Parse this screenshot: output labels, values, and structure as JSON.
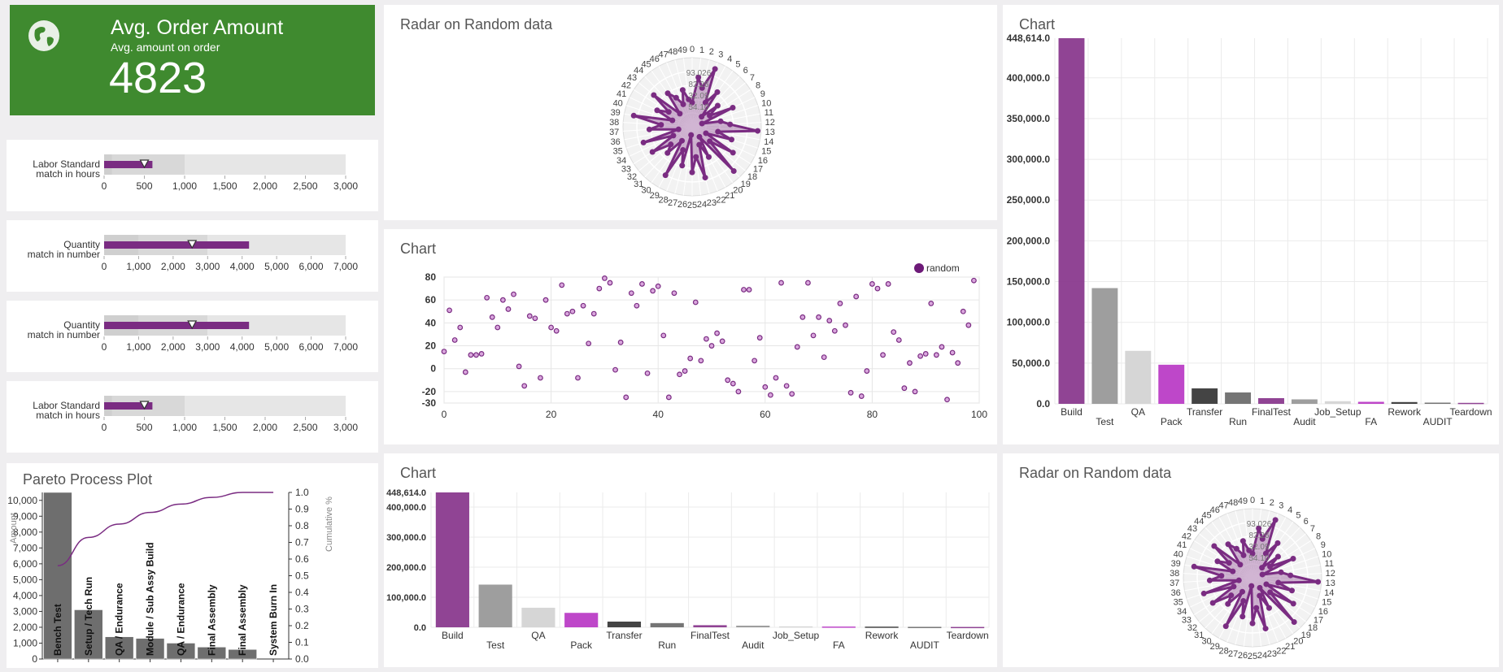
{
  "kpi": {
    "title": "Avg. Order Amount",
    "subtitle": "Avg. amount on order",
    "value": "4823",
    "icon": "globe-icon",
    "background": "#3f8a2f"
  },
  "bullets": [
    {
      "label1": "Labor Standard",
      "label2": "match in hours",
      "value": 600,
      "marker": 500,
      "bands": [
        [
          0,
          100,
          "#cfcfcf"
        ],
        [
          100,
          1000,
          "#d8d8d8"
        ],
        [
          1000,
          3000,
          "#e6e6e6"
        ]
      ],
      "max": 3000,
      "ticks": [
        0,
        500,
        1000,
        1500,
        2000,
        2500,
        3000
      ],
      "tick_labels": [
        "0",
        "500",
        "1,000",
        "1,500",
        "2,000",
        "2,500",
        "3,000"
      ]
    },
    {
      "label1": "Quantity",
      "label2": "match in number",
      "value": 4200,
      "marker": 2550,
      "bands": [
        [
          0,
          1000,
          "#cfcfcf"
        ],
        [
          1000,
          3000,
          "#d8d8d8"
        ],
        [
          3000,
          7000,
          "#e6e6e6"
        ]
      ],
      "max": 7000,
      "ticks": [
        0,
        1000,
        2000,
        3000,
        4000,
        5000,
        6000,
        7000
      ],
      "tick_labels": [
        "0",
        "1,000",
        "2,000",
        "3,000",
        "4,000",
        "5,000",
        "6,000",
        "7,000"
      ]
    },
    {
      "label1": "Quantity",
      "label2": "match in number",
      "value": 4200,
      "marker": 2550,
      "bands": [
        [
          0,
          1000,
          "#cfcfcf"
        ],
        [
          1000,
          3000,
          "#d8d8d8"
        ],
        [
          3000,
          7000,
          "#e6e6e6"
        ]
      ],
      "max": 7000,
      "ticks": [
        0,
        1000,
        2000,
        3000,
        4000,
        5000,
        6000,
        7000
      ],
      "tick_labels": [
        "0",
        "1,000",
        "2,000",
        "3,000",
        "4,000",
        "5,000",
        "6,000",
        "7,000"
      ]
    },
    {
      "label1": "Labor Standard",
      "label2": "match in hours",
      "value": 600,
      "marker": 500,
      "bands": [
        [
          0,
          100,
          "#cfcfcf"
        ],
        [
          100,
          1000,
          "#d8d8d8"
        ],
        [
          1000,
          3000,
          "#e6e6e6"
        ]
      ],
      "max": 3000,
      "ticks": [
        0,
        500,
        1000,
        1500,
        2000,
        2500,
        3000
      ],
      "tick_labels": [
        "0",
        "500",
        "1,000",
        "1,500",
        "2,000",
        "2,500",
        "3,000"
      ]
    }
  ],
  "titles": {
    "radar_top": "Radar on Random data",
    "scatter": "Chart",
    "bar_bottom": "Chart",
    "bar_right": "Chart",
    "radar_bottom": "Radar on Random data",
    "pareto": "Pareto Process Plot"
  },
  "colors": {
    "purple": "#7a2c82",
    "bright_purple": "#b83cc4",
    "gray": "#999999"
  },
  "chart_data": [
    {
      "id": "radar",
      "type": "radar",
      "axes": [
        "0",
        "1",
        "2",
        "3",
        "4",
        "5",
        "6",
        "7",
        "8",
        "9",
        "10",
        "11",
        "12",
        "13",
        "14",
        "15",
        "16",
        "17",
        "18",
        "19",
        "20",
        "21",
        "22",
        "23",
        "24",
        "25",
        "26",
        "27",
        "28",
        "29",
        "30",
        "31",
        "32",
        "33",
        "34",
        "35",
        "36",
        "37",
        "38",
        "39",
        "40",
        "41",
        "42",
        "43",
        "44",
        "45",
        "46",
        "47",
        "48",
        "49"
      ],
      "values": [
        35,
        72,
        58,
        90,
        40,
        62,
        20,
        48,
        30,
        65,
        15,
        42,
        55,
        95,
        38,
        60,
        22,
        70,
        33,
        88,
        18,
        50,
        28,
        76,
        44,
        66,
        12,
        58,
        36,
        80,
        25,
        52,
        40,
        68,
        30,
        74,
        20,
        62,
        45,
        86,
        30,
        56,
        40,
        72,
        26,
        60,
        48,
        35,
        55,
        40
      ],
      "rmax": 100,
      "center_labels": [
        "93.026",
        "82.26",
        "32.09",
        "54.10"
      ]
    },
    {
      "id": "scatter",
      "type": "scatter",
      "legend": "random",
      "legend_position": "top-right",
      "xlim": [
        0,
        100
      ],
      "ylim": [
        -30,
        80
      ],
      "xticks": [
        0,
        20,
        40,
        60,
        80,
        100
      ],
      "yticks": [
        -30,
        -20,
        0,
        20,
        40,
        60,
        80
      ],
      "grid": true,
      "points": [
        [
          0,
          15
        ],
        [
          1,
          51
        ],
        [
          2,
          25
        ],
        [
          3,
          36
        ],
        [
          4,
          -3
        ],
        [
          5,
          12
        ],
        [
          6,
          12
        ],
        [
          7,
          13
        ],
        [
          8,
          62
        ],
        [
          9,
          45
        ],
        [
          10,
          36
        ],
        [
          11,
          60
        ],
        [
          12,
          52
        ],
        [
          13,
          65
        ],
        [
          14,
          2
        ],
        [
          15,
          -15
        ],
        [
          16,
          46
        ],
        [
          17,
          44
        ],
        [
          18,
          -8
        ],
        [
          19,
          60
        ],
        [
          20,
          36
        ],
        [
          21,
          33
        ],
        [
          22,
          73
        ],
        [
          23,
          48
        ],
        [
          24,
          50
        ],
        [
          25,
          -8
        ],
        [
          26,
          55
        ],
        [
          27,
          22
        ],
        [
          28,
          48
        ],
        [
          29,
          70
        ],
        [
          30,
          79
        ],
        [
          31,
          75
        ],
        [
          32,
          -1
        ],
        [
          33,
          23
        ],
        [
          34,
          -25
        ],
        [
          35,
          66
        ],
        [
          36,
          55
        ],
        [
          37,
          74
        ],
        [
          38,
          -4
        ],
        [
          39,
          68
        ],
        [
          40,
          72
        ],
        [
          41,
          29
        ],
        [
          42,
          -25
        ],
        [
          43,
          66
        ],
        [
          44,
          -5
        ],
        [
          45,
          -2
        ],
        [
          46,
          9
        ],
        [
          47,
          58
        ],
        [
          48,
          7
        ],
        [
          49,
          26
        ],
        [
          50,
          20
        ],
        [
          51,
          31
        ],
        [
          52,
          24
        ],
        [
          53,
          -10
        ],
        [
          54,
          -13
        ],
        [
          55,
          -20
        ],
        [
          56,
          69
        ],
        [
          57,
          69
        ],
        [
          58,
          7
        ],
        [
          59,
          27
        ],
        [
          60,
          -16
        ],
        [
          61,
          -23
        ],
        [
          62,
          -8
        ],
        [
          63,
          75
        ],
        [
          64,
          -15
        ],
        [
          65,
          -22
        ],
        [
          66,
          19
        ],
        [
          67,
          45
        ],
        [
          68,
          75
        ],
        [
          69,
          29
        ],
        [
          70,
          45
        ],
        [
          71,
          10
        ],
        [
          72,
          42
        ],
        [
          73,
          33
        ],
        [
          74,
          57
        ],
        [
          75,
          38
        ],
        [
          76,
          -21
        ],
        [
          77,
          63
        ],
        [
          78,
          -24
        ],
        [
          79,
          -2
        ],
        [
          80,
          74
        ],
        [
          81,
          70
        ],
        [
          82,
          12
        ],
        [
          83,
          74
        ],
        [
          84,
          32
        ],
        [
          85,
          25
        ],
        [
          86,
          -17
        ],
        [
          87,
          5
        ],
        [
          88,
          -20
        ],
        [
          89,
          11
        ],
        [
          90,
          13
        ],
        [
          91,
          57
        ],
        [
          92,
          12
        ],
        [
          93,
          19
        ],
        [
          94,
          -27
        ],
        [
          95,
          14
        ],
        [
          96,
          5
        ],
        [
          97,
          50
        ],
        [
          98,
          38
        ],
        [
          99,
          77
        ]
      ]
    },
    {
      "id": "bar",
      "type": "bar",
      "categories": [
        "Build",
        "Test",
        "QA",
        "Pack",
        "Transfer",
        "Run",
        "FinalTest",
        "Audit",
        "Job_Setup",
        "FA",
        "Rework",
        "AUDIT",
        "Teardown"
      ],
      "values": [
        448614,
        142000,
        65000,
        48000,
        19000,
        14000,
        7000,
        5500,
        3200,
        2500,
        2200,
        1500,
        1200
      ],
      "colors": [
        "#8a3a8e",
        "#999999",
        "#d4d4d4",
        "#bb3dc6",
        "#3a3a3a",
        "#6e6e6e",
        "#8a3a8e",
        "#999999",
        "#d4d4d4",
        "#bb3dc6",
        "#3a3a3a",
        "#6e6e6e",
        "#8a3a8e"
      ],
      "max_label": "448,614.0",
      "yticks_right": [
        "0.0",
        "50,000.0",
        "100,000.0",
        "150,000.0",
        "200,000.0",
        "250,000.0",
        "300,000.0",
        "350,000.0",
        "400,000.0"
      ],
      "yticks_bottom": [
        "0.0",
        "100,000.0",
        "200,000.0",
        "300,000.0",
        "400,000.0"
      ],
      "ymax": 448614
    },
    {
      "id": "pareto",
      "type": "pareto",
      "categories": [
        "Bench Test",
        "Setup / Tech Run",
        "QA / Endurance",
        "Module / Sub Assy Build",
        "QA / Endurance",
        "Final Assembly",
        "Final Assembly",
        "System Burn In"
      ],
      "values": [
        10500,
        3100,
        1400,
        1300,
        1000,
        750,
        600,
        0
      ],
      "cumulative": [
        0.56,
        0.73,
        0.81,
        0.88,
        0.93,
        0.97,
        1.0,
        1.0
      ],
      "ylabel": "Amount",
      "y2label": "Cumulative %",
      "ylim": [
        0,
        10500
      ],
      "yticks": [
        0,
        1000,
        2000,
        3000,
        4000,
        5000,
        6000,
        7000,
        8000,
        9000,
        10000
      ],
      "ytick_labels": [
        "0",
        "1,000",
        "2,000",
        "3,000",
        "4,000",
        "5,000",
        "6,000",
        "7,000",
        "8,000",
        "9,000",
        "10,000"
      ],
      "y2ticks": [
        "0.0",
        "0.1",
        "0.2",
        "0.3",
        "0.4",
        "0.5",
        "0.6",
        "0.7",
        "0.8",
        "0.9",
        "1.0"
      ]
    }
  ]
}
